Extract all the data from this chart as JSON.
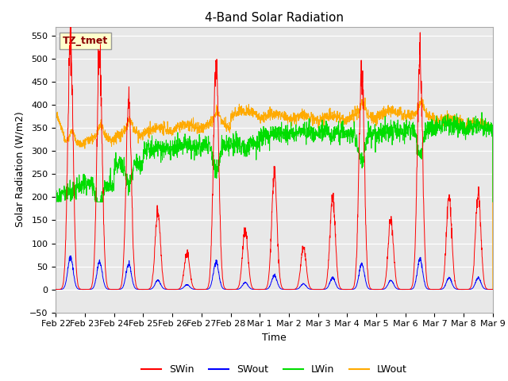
{
  "title": "4-Band Solar Radiation",
  "ylabel": "Solar Radiation (W/m2)",
  "xlabel": "Time",
  "ylim": [
    -50,
    570
  ],
  "colors": {
    "SWin": "#ff0000",
    "SWout": "#0000ff",
    "LWin": "#00dd00",
    "LWout": "#ffaa00"
  },
  "background_color": "#e8e8e8",
  "annotation_text": "TZ_tmet",
  "annotation_color": "#8b0000",
  "annotation_bg": "#ffffcc",
  "n_days": 15,
  "seed": 42,
  "tick_labels": [
    "Feb 22",
    "Feb 23",
    "Feb 24",
    "Feb 25",
    "Feb 26",
    "Feb 27",
    "Feb 28",
    "Mar 1",
    "Mar 2",
    "Mar 3",
    "Mar 4",
    "Mar 5",
    "Mar 6",
    "Mar 7",
    "Mar 8",
    "Mar 9"
  ],
  "day_peaks_SWin": [
    540,
    500,
    410,
    170,
    80,
    490,
    130,
    250,
    90,
    200,
    470,
    150,
    510,
    200,
    210
  ],
  "day_peaks_SWout": [
    70,
    60,
    55,
    20,
    10,
    60,
    15,
    30,
    12,
    25,
    55,
    20,
    65,
    25,
    25
  ],
  "LWout_base": [
    310,
    320,
    330,
    340,
    345,
    350,
    375,
    370,
    365,
    365,
    370,
    375,
    370,
    360,
    350
  ],
  "LWin_base": [
    205,
    225,
    270,
    300,
    305,
    310,
    315,
    330,
    335,
    340,
    335,
    335,
    345,
    350,
    345
  ]
}
